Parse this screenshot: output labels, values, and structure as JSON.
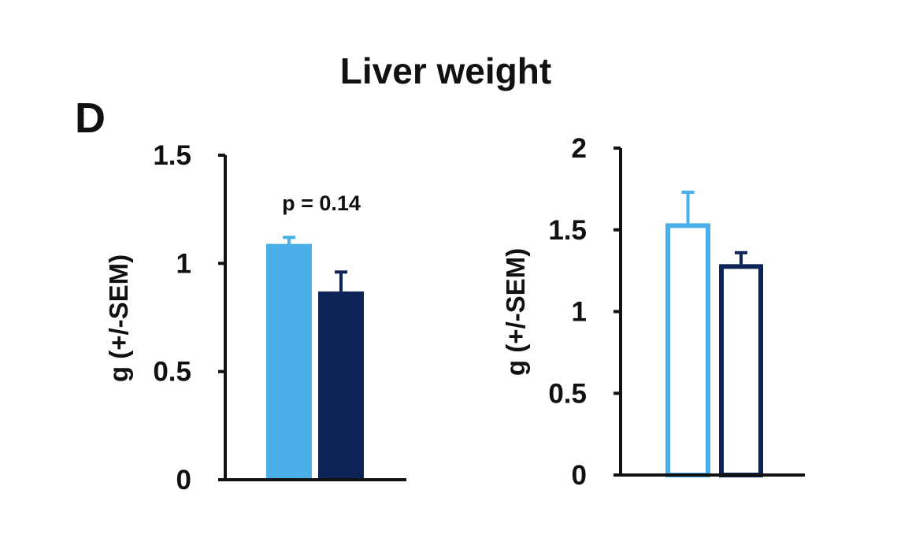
{
  "panel_label": "D",
  "title": "Liver weight",
  "colors": {
    "light_blue": "#4aaee8",
    "dark_navy": "#0d2457",
    "axis": "#111111"
  },
  "chart_data": [
    {
      "type": "bar",
      "ylabel": "g (+/-SEM)",
      "ylim": [
        0,
        1.5
      ],
      "yticks": [
        0,
        0.5,
        1,
        1.5
      ],
      "ytick_labels": [
        "0",
        "0.5",
        "1",
        "1.5"
      ],
      "annotation": "p = 0.14",
      "grid": false,
      "bar_style": "filled",
      "series": [
        {
          "values": [
            1.09
          ],
          "error": [
            0.03
          ],
          "color": "#4aaee8"
        },
        {
          "values": [
            0.87
          ],
          "error": [
            0.09
          ],
          "color": "#0d2457"
        }
      ]
    },
    {
      "type": "bar",
      "ylabel": "g (+/-SEM)",
      "ylim": [
        0,
        2
      ],
      "yticks": [
        0,
        0.5,
        1,
        1.5,
        2
      ],
      "ytick_labels": [
        "0",
        "0.5",
        "1",
        "1.5",
        "2"
      ],
      "grid": false,
      "bar_style": "outline",
      "series": [
        {
          "values": [
            1.54
          ],
          "error": [
            0.19
          ],
          "color": "#4aaee8"
        },
        {
          "values": [
            1.29
          ],
          "error": [
            0.07
          ],
          "color": "#0d2457"
        }
      ]
    }
  ]
}
